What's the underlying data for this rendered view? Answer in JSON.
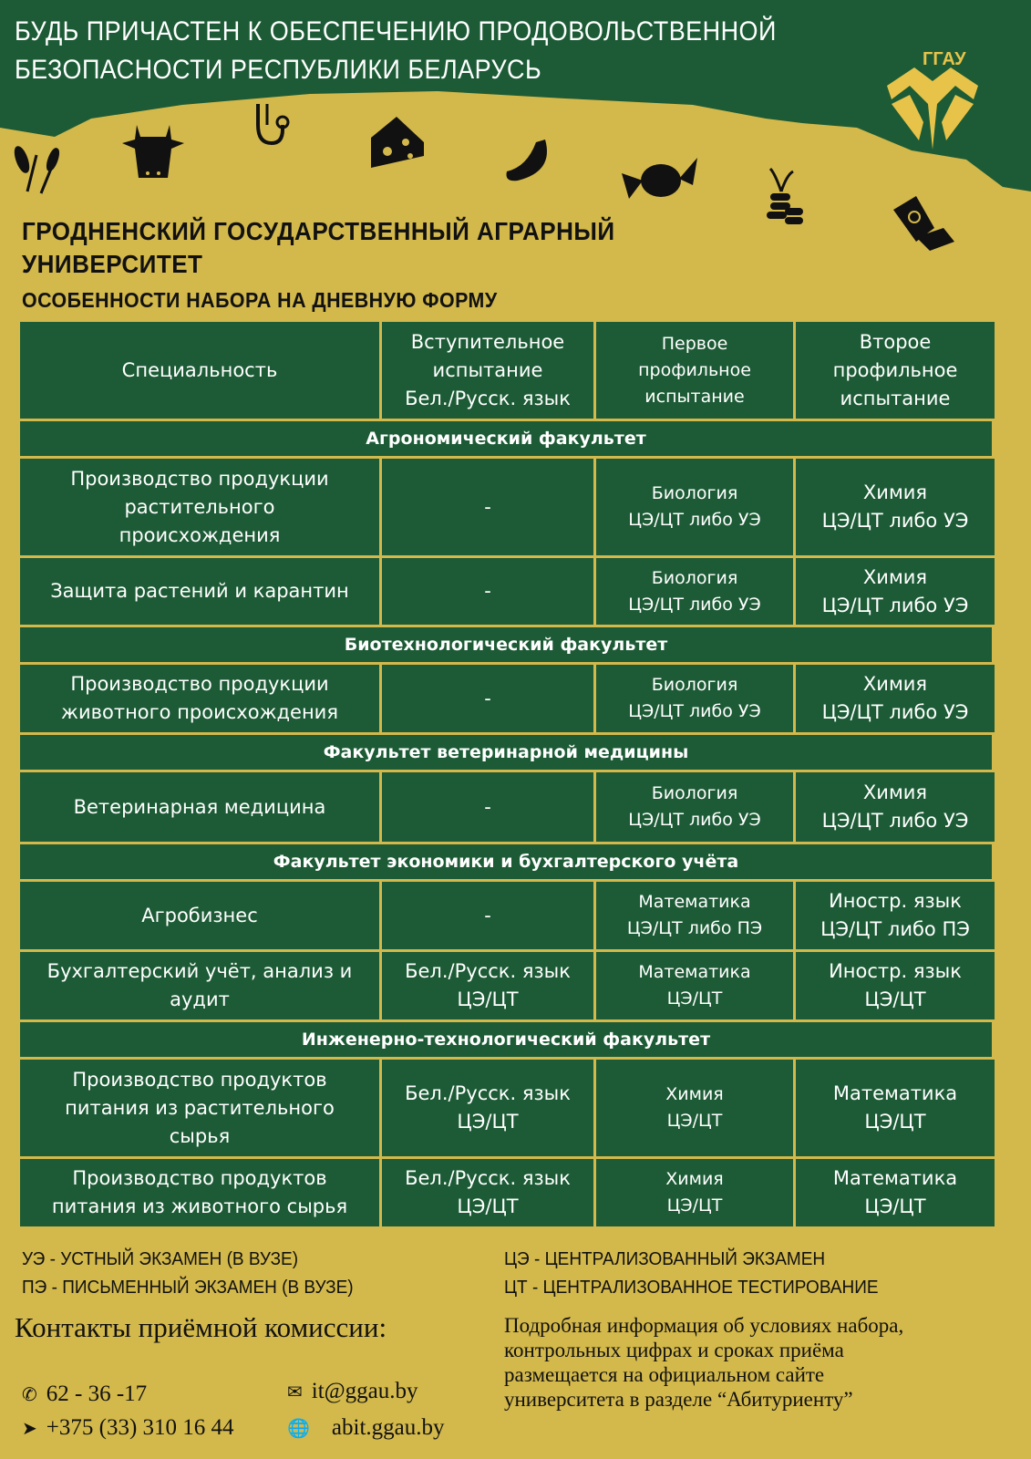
{
  "colors": {
    "green": "#1c5b35",
    "gold": "#d3b84b"
  },
  "header": {
    "slogan_line1": "БУДЬ ПРИЧАСТЕН К ОБЕСПЕЧЕНИЮ ПРОДОВОЛЬСТВЕННОЙ",
    "slogan_line2": "БЕЗОПАСНОСТИ РЕСПУБЛИКИ БЕЛАРУСЬ",
    "logo_text": "ГГАУ",
    "icons": [
      "wheat-icon",
      "cow-icon",
      "stethoscope-icon",
      "cheese-icon",
      "sausage-icon",
      "candy-icon",
      "coins-sprout-icon",
      "money-hand-icon"
    ]
  },
  "university": {
    "line1": "ГРОДНЕНСКИЙ ГОСУДАРСТВЕННЫЙ  АГРАРНЫЙ",
    "line2": "УНИВЕРСИТЕТ"
  },
  "subtitle": "ОСОБЕННОСТИ НАБОРА НА ДНЕВНУЮ ФОРМУ",
  "table": {
    "headers": [
      "Специальность",
      "Вступительное\nиспытание\nБел./Русск. язык",
      "Первое\nпрофильное\nиспытание",
      "Второе\nпрофильное\nиспытание"
    ],
    "sections": [
      {
        "name": "Агрономический факультет",
        "rows": [
          [
            "Производство продукции\nрастительного\nпроисхождения",
            "-",
            "Биология\nЦЭ/ЦТ либо УЭ",
            "Химия\nЦЭ/ЦТ либо УЭ"
          ],
          [
            "Защита растений и карантин",
            "-",
            "Биология\nЦЭ/ЦТ либо УЭ",
            "Химия\nЦЭ/ЦТ либо УЭ"
          ]
        ]
      },
      {
        "name": "Биотехнологический факультет",
        "rows": [
          [
            "Производство продукции\nживотного происхождения",
            "-",
            "Биология\nЦЭ/ЦТ либо УЭ",
            "Химия\nЦЭ/ЦТ либо УЭ"
          ]
        ]
      },
      {
        "name": "Факультет ветеринарной медицины",
        "rows": [
          [
            "Ветеринарная медицина",
            "-",
            "Биология\nЦЭ/ЦТ либо УЭ",
            "Химия\nЦЭ/ЦТ либо УЭ"
          ]
        ]
      },
      {
        "name": "Факультет экономики и бухгалтерского учёта",
        "rows": [
          [
            "Агробизнес",
            "-",
            "Математика\nЦЭ/ЦТ либо ПЭ",
            "Иностр. язык\nЦЭ/ЦТ либо ПЭ"
          ],
          [
            "Бухгалтерский учёт, анализ и\nаудит",
            "Бел./Русск. язык\nЦЭ/ЦТ",
            "Математика\nЦЭ/ЦТ",
            "Иностр. язык\nЦЭ/ЦТ"
          ]
        ]
      },
      {
        "name": "Инженерно-технологический факультет",
        "rows": [
          [
            "Производство продуктов\nпитания из растительного\nсырья",
            "Бел./Русск. язык\nЦЭ/ЦТ",
            "Химия\nЦЭ/ЦТ",
            "Математика\nЦЭ/ЦТ"
          ],
          [
            "Производство продуктов\nпитания из животного сырья",
            "Бел./Русск. язык\nЦЭ/ЦТ",
            "Химия\nЦЭ/ЦТ",
            "Математика\nЦЭ/ЦТ"
          ]
        ]
      }
    ]
  },
  "legend": [
    "УЭ - УСТНЫЙ ЭКЗАМЕН (В ВУЗЕ)",
    "ПЭ - ПИСЬМЕННЫЙ ЭКЗАМЕН (В ВУЗЕ)",
    "ЦЭ - ЦЕНТРАЛИЗОВАННЫЙ ЭКЗАМЕН",
    "ЦТ - ЦЕНТРАЛИЗОВАННОЕ ТЕСТИРОВАНИЕ"
  ],
  "contacts": {
    "title": "Контакты приёмной комиссии:",
    "phone": "62 - 36 -17",
    "mobile": "+375 (33) 310 16 44",
    "email": "it@ggau.by",
    "site": "abit.ggau.by"
  },
  "info": "Подробная информация об условиях набора,\nконтрольных цифрах и сроках приёма\nразмещается на официальном сайте\nуниверситета в разделе “Абитуриенту”"
}
